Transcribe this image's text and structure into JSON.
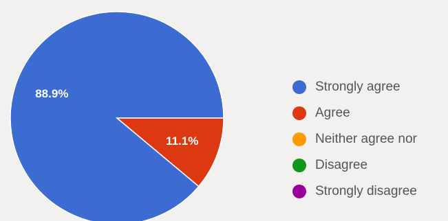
{
  "chart_data": {
    "type": "pie",
    "categories": [
      "Strongly agree",
      "Agree",
      "Neither agree nor",
      "Disagree",
      "Strongly disagree"
    ],
    "values": [
      88.9,
      11.1,
      0,
      0,
      0
    ],
    "value_labels": [
      "88.9%",
      "11.1%",
      "",
      "",
      ""
    ],
    "colors": [
      "#3c6bd1",
      "#dc3912",
      "#ff9900",
      "#109618",
      "#990099"
    ],
    "title": "",
    "legend_position": "right"
  }
}
